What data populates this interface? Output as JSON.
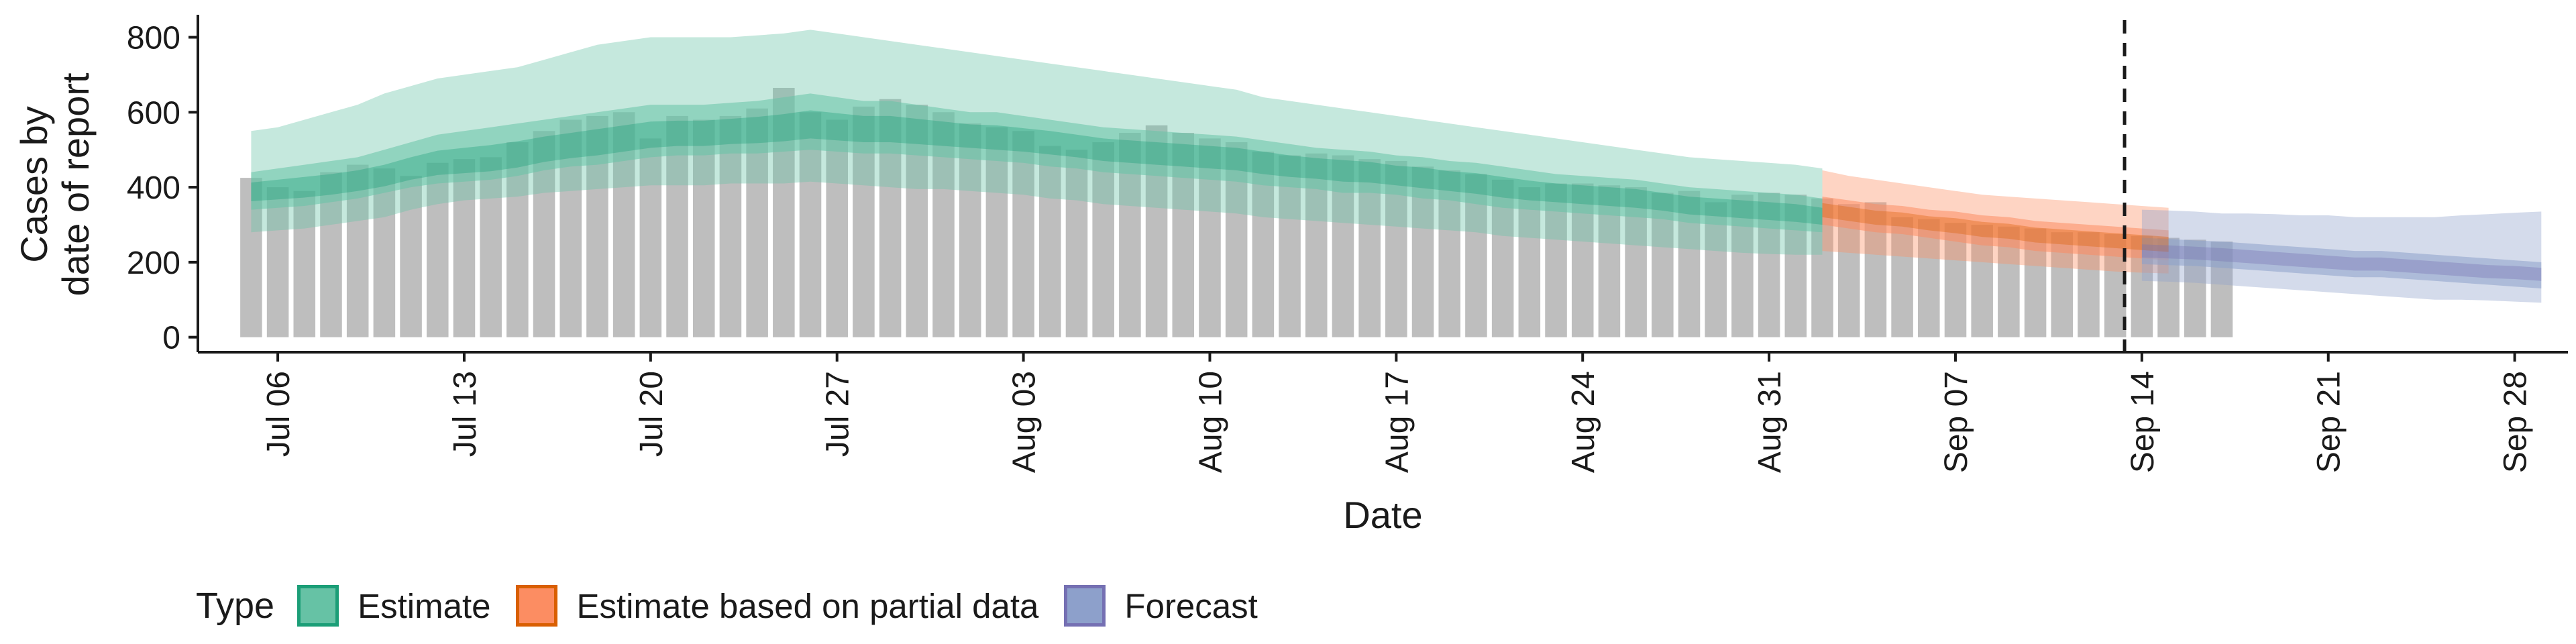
{
  "chart_data": {
    "type": "bar",
    "xlabel": "Date",
    "ylabel_lines": [
      "Cases by",
      "date of report"
    ],
    "yticks": [
      0,
      200,
      400,
      600,
      800
    ],
    "ylim": [
      -40,
      860
    ],
    "x_range": [
      "2021-07-03",
      "2021-09-30"
    ],
    "xticks": [
      {
        "date": "2021-07-06",
        "label": "Jul 06"
      },
      {
        "date": "2021-07-13",
        "label": "Jul 13"
      },
      {
        "date": "2021-07-20",
        "label": "Jul 20"
      },
      {
        "date": "2021-07-27",
        "label": "Jul 27"
      },
      {
        "date": "2021-08-03",
        "label": "Aug 03"
      },
      {
        "date": "2021-08-10",
        "label": "Aug 10"
      },
      {
        "date": "2021-08-17",
        "label": "Aug 17"
      },
      {
        "date": "2021-08-24",
        "label": "Aug 24"
      },
      {
        "date": "2021-08-31",
        "label": "Aug 31"
      },
      {
        "date": "2021-09-07",
        "label": "Sep 07"
      },
      {
        "date": "2021-09-14",
        "label": "Sep 14"
      },
      {
        "date": "2021-09-21",
        "label": "Sep 21"
      },
      {
        "date": "2021-09-28",
        "label": "Sep 28"
      }
    ],
    "reported_cases": {
      "color": "#bebebe",
      "start_date": "2021-07-05",
      "values": [
        425,
        400,
        390,
        440,
        460,
        450,
        430,
        465,
        475,
        480,
        520,
        550,
        580,
        590,
        600,
        530,
        590,
        580,
        590,
        610,
        665,
        600,
        580,
        615,
        635,
        620,
        600,
        570,
        560,
        550,
        510,
        500,
        520,
        545,
        565,
        545,
        530,
        520,
        495,
        485,
        490,
        485,
        475,
        470,
        455,
        445,
        435,
        420,
        400,
        410,
        410,
        405,
        400,
        385,
        390,
        360,
        380,
        385,
        380,
        370,
        355,
        360,
        320,
        315,
        305,
        300,
        295,
        290,
        280,
        280,
        275,
        270,
        265,
        260,
        255
      ]
    },
    "estimate": {
      "name": "Estimate",
      "color": "#1b9e77",
      "fill": "#66c2a5",
      "start_date": "2021-07-05",
      "median": [
        385,
        390,
        395,
        400,
        410,
        420,
        440,
        455,
        460,
        465,
        475,
        490,
        500,
        510,
        520,
        530,
        535,
        535,
        540,
        545,
        550,
        560,
        555,
        550,
        550,
        545,
        540,
        535,
        530,
        525,
        520,
        510,
        500,
        495,
        490,
        485,
        480,
        475,
        465,
        455,
        450,
        445,
        440,
        430,
        425,
        415,
        410,
        400,
        390,
        385,
        380,
        375,
        370,
        360,
        350,
        345,
        340,
        335,
        330,
        320
      ],
      "inner_low": [
        340,
        345,
        350,
        360,
        370,
        385,
        400,
        410,
        415,
        420,
        430,
        445,
        455,
        460,
        470,
        480,
        485,
        485,
        490,
        490,
        495,
        500,
        495,
        490,
        490,
        485,
        480,
        475,
        470,
        465,
        455,
        450,
        440,
        435,
        430,
        425,
        420,
        415,
        405,
        400,
        395,
        385,
        385,
        380,
        370,
        365,
        355,
        345,
        340,
        335,
        330,
        325,
        320,
        315,
        305,
        300,
        295,
        290,
        285,
        280
      ],
      "inner_high": [
        440,
        450,
        460,
        470,
        480,
        500,
        520,
        540,
        550,
        560,
        570,
        580,
        590,
        600,
        610,
        620,
        620,
        620,
        625,
        630,
        640,
        650,
        640,
        630,
        630,
        620,
        610,
        600,
        600,
        590,
        580,
        570,
        560,
        555,
        550,
        545,
        540,
        535,
        525,
        515,
        505,
        500,
        495,
        485,
        480,
        470,
        465,
        455,
        445,
        435,
        430,
        425,
        420,
        410,
        400,
        395,
        390,
        385,
        380,
        370
      ],
      "outer_low": [
        280,
        285,
        290,
        300,
        310,
        320,
        340,
        355,
        365,
        370,
        375,
        385,
        390,
        395,
        400,
        405,
        405,
        405,
        410,
        410,
        410,
        415,
        410,
        405,
        400,
        395,
        395,
        390,
        385,
        380,
        370,
        365,
        355,
        350,
        345,
        340,
        335,
        330,
        320,
        315,
        310,
        305,
        300,
        295,
        290,
        285,
        280,
        270,
        265,
        260,
        255,
        250,
        245,
        240,
        235,
        230,
        225,
        222,
        220,
        220
      ],
      "outer_high": [
        550,
        560,
        580,
        600,
        620,
        650,
        670,
        690,
        700,
        710,
        720,
        740,
        760,
        780,
        790,
        800,
        800,
        800,
        800,
        805,
        810,
        820,
        810,
        800,
        790,
        780,
        770,
        760,
        750,
        740,
        730,
        720,
        710,
        700,
        690,
        680,
        670,
        660,
        640,
        630,
        620,
        610,
        600,
        590,
        580,
        570,
        560,
        550,
        540,
        530,
        520,
        510,
        500,
        490,
        480,
        475,
        470,
        465,
        460,
        450
      ]
    },
    "partial": {
      "name": "Estimate based on partial data",
      "color": "#d95f02",
      "fill": "#fc8d62",
      "start_date": "2021-09-02",
      "median": [
        340,
        330,
        320,
        315,
        305,
        300,
        290,
        285,
        275,
        270,
        265,
        260,
        255,
        250
      ],
      "inner_low": [
        300,
        290,
        280,
        275,
        265,
        255,
        245,
        240,
        230,
        225,
        220,
        215,
        210,
        205
      ],
      "inner_high": [
        375,
        365,
        355,
        350,
        340,
        335,
        325,
        320,
        310,
        305,
        300,
        295,
        290,
        285
      ],
      "outer_low": [
        230,
        225,
        220,
        215,
        210,
        205,
        200,
        195,
        190,
        185,
        180,
        175,
        172,
        170
      ],
      "outer_high": [
        445,
        430,
        420,
        410,
        400,
        390,
        380,
        375,
        370,
        365,
        360,
        355,
        350,
        345
      ]
    },
    "forecast": {
      "name": "Forecast",
      "color": "#7570b3",
      "fill": "#8da0cb",
      "start_date": "2021-09-14",
      "median": [
        230,
        228,
        225,
        220,
        215,
        210,
        205,
        200,
        195,
        195,
        190,
        185,
        180,
        175,
        175,
        170
      ],
      "inner_low": [
        195,
        192,
        190,
        185,
        180,
        175,
        170,
        165,
        160,
        160,
        155,
        150,
        145,
        140,
        135,
        130
      ],
      "inner_high": [
        265,
        262,
        258,
        255,
        250,
        245,
        240,
        235,
        230,
        230,
        225,
        220,
        215,
        210,
        205,
        200
      ],
      "outer_low": [
        150,
        148,
        145,
        140,
        135,
        130,
        125,
        120,
        115,
        110,
        105,
        100,
        100,
        98,
        95,
        92
      ],
      "outer_high": [
        340,
        338,
        335,
        330,
        330,
        328,
        325,
        325,
        320,
        320,
        320,
        320,
        325,
        328,
        332,
        335
      ]
    },
    "forecast_cutoff_date": "2021-09-13",
    "legend": {
      "title": "Type",
      "placement": "bottom",
      "items": [
        {
          "label": "Estimate",
          "fill": "#66c2a5",
          "border": "#1b9e77"
        },
        {
          "label": "Estimate based on partial data",
          "fill": "#fc8d62",
          "border": "#d95f02"
        },
        {
          "label": "Forecast",
          "fill": "#8da0cb",
          "border": "#7570b3"
        }
      ]
    }
  }
}
